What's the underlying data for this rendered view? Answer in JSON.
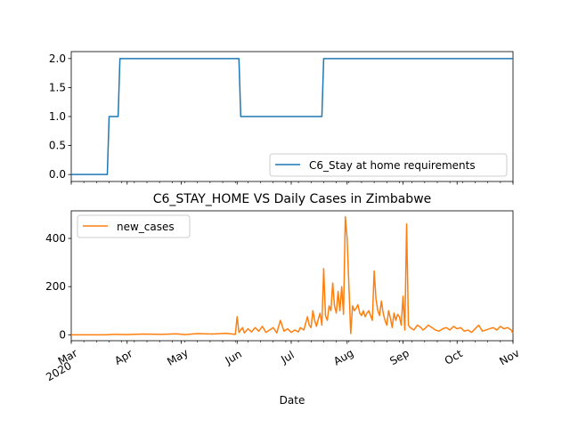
{
  "chart_data": [
    {
      "type": "line",
      "title": "",
      "xlabel": "",
      "ylabel": "",
      "ylim": [
        0,
        2
      ],
      "yticks": [
        "0.0",
        "0.5",
        "1.0",
        "1.5",
        "2.0"
      ],
      "legend_position": "lower-right",
      "series": [
        {
          "name": "C6_Stay at home requirements",
          "color": "#1f77b4",
          "x": [
            "2020-03-01",
            "2020-03-21",
            "2020-03-22",
            "2020-03-27",
            "2020-03-28",
            "2020-06-02",
            "2020-06-03",
            "2020-07-18",
            "2020-07-19",
            "2020-11-01"
          ],
          "values": [
            0,
            0,
            1,
            1,
            2,
            2,
            1,
            1,
            2,
            2
          ]
        }
      ]
    },
    {
      "type": "line",
      "title": "C6_STAY_HOME VS Daily Cases in Zimbabwe",
      "xlabel": "Date",
      "ylabel": "",
      "ylim": [
        0,
        500
      ],
      "yticks": [
        "0",
        "200",
        "400"
      ],
      "xticks": [
        {
          "date": "2020-03-01",
          "label": "Mar",
          "sub": "2020"
        },
        {
          "date": "2020-04-01",
          "label": "Apr",
          "sub": ""
        },
        {
          "date": "2020-05-01",
          "label": "May",
          "sub": ""
        },
        {
          "date": "2020-06-01",
          "label": "Jun",
          "sub": ""
        },
        {
          "date": "2020-07-01",
          "label": "Jul",
          "sub": ""
        },
        {
          "date": "2020-08-01",
          "label": "Aug",
          "sub": ""
        },
        {
          "date": "2020-09-01",
          "label": "Sep",
          "sub": ""
        },
        {
          "date": "2020-10-01",
          "label": "Oct",
          "sub": ""
        },
        {
          "date": "2020-11-01",
          "label": "Nov",
          "sub": ""
        }
      ],
      "legend_position": "upper-left",
      "series": [
        {
          "name": "new_cases",
          "color": "#ff7f0e",
          "x": [
            "2020-03-01",
            "2020-03-20",
            "2020-03-25",
            "2020-04-01",
            "2020-04-10",
            "2020-04-20",
            "2020-04-28",
            "2020-05-03",
            "2020-05-10",
            "2020-05-18",
            "2020-05-26",
            "2020-05-31",
            "2020-06-01",
            "2020-06-02",
            "2020-06-04",
            "2020-06-05",
            "2020-06-07",
            "2020-06-09",
            "2020-06-11",
            "2020-06-13",
            "2020-06-15",
            "2020-06-17",
            "2020-06-19",
            "2020-06-21",
            "2020-06-23",
            "2020-06-25",
            "2020-06-27",
            "2020-06-29",
            "2020-07-01",
            "2020-07-03",
            "2020-07-05",
            "2020-07-06",
            "2020-07-08",
            "2020-07-10",
            "2020-07-11",
            "2020-07-12",
            "2020-07-13",
            "2020-07-14",
            "2020-07-15",
            "2020-07-16",
            "2020-07-17",
            "2020-07-18",
            "2020-07-19",
            "2020-07-20",
            "2020-07-21",
            "2020-07-22",
            "2020-07-23",
            "2020-07-24",
            "2020-07-25",
            "2020-07-26",
            "2020-07-27",
            "2020-07-28",
            "2020-07-29",
            "2020-07-30",
            "2020-07-31",
            "2020-08-01",
            "2020-08-02",
            "2020-08-03",
            "2020-08-04",
            "2020-08-05",
            "2020-08-06",
            "2020-08-07",
            "2020-08-08",
            "2020-08-09",
            "2020-08-10",
            "2020-08-11",
            "2020-08-12",
            "2020-08-13",
            "2020-08-14",
            "2020-08-15",
            "2020-08-16",
            "2020-08-17",
            "2020-08-18",
            "2020-08-19",
            "2020-08-20",
            "2020-08-21",
            "2020-08-22",
            "2020-08-23",
            "2020-08-24",
            "2020-08-25",
            "2020-08-26",
            "2020-08-27",
            "2020-08-28",
            "2020-08-29",
            "2020-08-30",
            "2020-08-31",
            "2020-09-01",
            "2020-09-02",
            "2020-09-03",
            "2020-09-04",
            "2020-09-05",
            "2020-09-06",
            "2020-09-07",
            "2020-09-08",
            "2020-09-09",
            "2020-09-10",
            "2020-09-11",
            "2020-09-12",
            "2020-09-13",
            "2020-09-15",
            "2020-09-17",
            "2020-09-19",
            "2020-09-21",
            "2020-09-23",
            "2020-09-25",
            "2020-09-27",
            "2020-09-29",
            "2020-10-01",
            "2020-10-03",
            "2020-10-05",
            "2020-10-07",
            "2020-10-09",
            "2020-10-11",
            "2020-10-13",
            "2020-10-15",
            "2020-10-17",
            "2020-10-19",
            "2020-10-21",
            "2020-10-23",
            "2020-10-25",
            "2020-10-27",
            "2020-10-29",
            "2020-10-31",
            "2020-11-01"
          ],
          "values": [
            0,
            0,
            2,
            1,
            3,
            2,
            4,
            1,
            5,
            3,
            6,
            2,
            75,
            10,
            30,
            8,
            25,
            12,
            30,
            15,
            35,
            10,
            20,
            30,
            8,
            60,
            15,
            25,
            10,
            20,
            12,
            30,
            20,
            75,
            40,
            30,
            100,
            60,
            35,
            65,
            90,
            40,
            275,
            80,
            60,
            120,
            100,
            215,
            120,
            90,
            180,
            100,
            200,
            85,
            490,
            400,
            200,
            5,
            120,
            100,
            110,
            125,
            90,
            80,
            100,
            75,
            90,
            100,
            80,
            60,
            265,
            150,
            100,
            80,
            140,
            90,
            60,
            40,
            100,
            70,
            30,
            90,
            60,
            85,
            75,
            40,
            160,
            20,
            460,
            40,
            30,
            25,
            20,
            30,
            40,
            35,
            30,
            20,
            25,
            40,
            30,
            20,
            15,
            25,
            30,
            20,
            35,
            25,
            30,
            15,
            20,
            10,
            25,
            40,
            15,
            20,
            25,
            30,
            20,
            35,
            25,
            30,
            20,
            5
          ]
        }
      ]
    }
  ]
}
